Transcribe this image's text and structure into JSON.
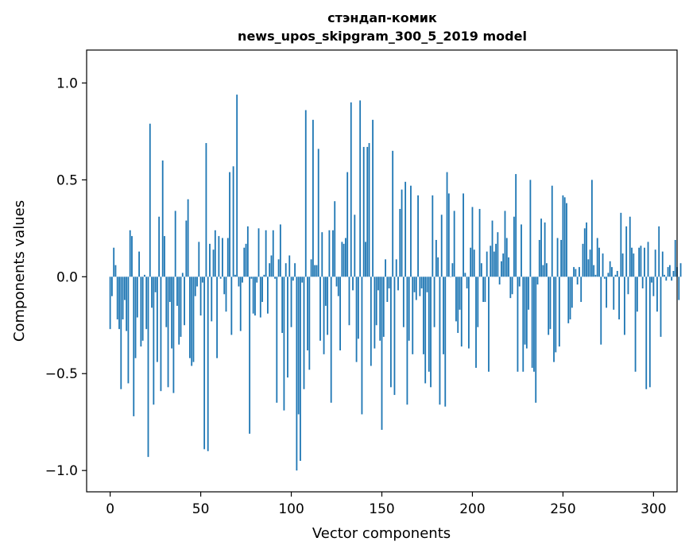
{
  "chart_data": {
    "type": "bar",
    "title": "стэндап-комик",
    "subtitle": "news_upos_skipgram_300_5_2019 model",
    "xlabel": "Vector components",
    "ylabel": "Components values",
    "xlim": [
      -13,
      313
    ],
    "ylim": [
      -1.11,
      1.17
    ],
    "xticks": [
      0,
      50,
      100,
      150,
      200,
      250,
      300
    ],
    "xtick_labels": [
      "0",
      "50",
      "100",
      "150",
      "200",
      "250",
      "300"
    ],
    "yticks": [
      -1.0,
      -0.5,
      0.0,
      0.5,
      1.0
    ],
    "ytick_labels": [
      "−1.0",
      "−0.5",
      "0.0",
      "0.5",
      "1.0"
    ],
    "grid": false,
    "bar_color": "#1f77b4",
    "values": [
      -0.27,
      -0.1,
      0.15,
      0.06,
      -0.22,
      -0.27,
      -0.58,
      -0.22,
      -0.12,
      -0.28,
      -0.55,
      0.24,
      0.21,
      -0.72,
      -0.42,
      -0.21,
      0.13,
      -0.36,
      -0.33,
      0.01,
      -0.27,
      -0.93,
      0.79,
      -0.16,
      -0.66,
      -0.08,
      -0.44,
      0.31,
      -0.59,
      0.6,
      0.21,
      -0.26,
      -0.57,
      -0.13,
      -0.37,
      -0.6,
      0.34,
      -0.15,
      -0.35,
      -0.31,
      0.02,
      -0.25,
      0.29,
      0.4,
      -0.42,
      -0.46,
      -0.44,
      -0.1,
      -0.05,
      0.18,
      -0.2,
      -0.03,
      -0.89,
      0.69,
      -0.9,
      0.17,
      -0.23,
      0.14,
      0.24,
      -0.42,
      0.21,
      -0.01,
      0.2,
      -0.09,
      -0.18,
      0.2,
      0.54,
      -0.3,
      0.57,
      0.01,
      0.94,
      -0.05,
      -0.28,
      -0.03,
      0.15,
      0.17,
      0.26,
      -0.81,
      -0.01,
      -0.19,
      -0.2,
      -0.03,
      0.25,
      -0.21,
      -0.13,
      0.01,
      0.24,
      -0.19,
      0.07,
      0.11,
      0.24,
      -0.01,
      -0.65,
      0.09,
      0.27,
      -0.29,
      -0.69,
      0.07,
      -0.52,
      0.11,
      -0.26,
      -0.02,
      0.07,
      -1.0,
      -0.71,
      -0.95,
      -0.03,
      -0.58,
      0.86,
      -0.38,
      -0.48,
      0.09,
      0.81,
      0.06,
      0.06,
      0.66,
      -0.33,
      0.23,
      -0.4,
      -0.15,
      -0.3,
      0.24,
      -0.65,
      0.24,
      0.39,
      -0.05,
      -0.1,
      -0.38,
      0.18,
      0.17,
      0.2,
      0.54,
      -0.25,
      0.9,
      -0.07,
      0.32,
      -0.44,
      -0.32,
      0.91,
      -0.71,
      0.67,
      0.18,
      0.67,
      0.69,
      -0.46,
      0.81,
      -0.37,
      -0.25,
      -0.07,
      -0.33,
      -0.79,
      -0.31,
      0.09,
      -0.13,
      -0.06,
      -0.57,
      0.65,
      -0.61,
      0.09,
      -0.07,
      0.35,
      0.45,
      -0.26,
      0.49,
      -0.66,
      -0.33,
      0.47,
      -0.4,
      -0.08,
      -0.12,
      0.42,
      -0.1,
      -0.06,
      -0.4,
      -0.55,
      -0.08,
      -0.49,
      -0.57,
      0.42,
      -0.26,
      0.19,
      0.1,
      -0.66,
      0.32,
      -0.4,
      -0.67,
      0.54,
      0.43,
      0.0,
      0.07,
      0.34,
      -0.23,
      -0.29,
      -0.17,
      -0.36,
      0.43,
      0.02,
      -0.06,
      -0.37,
      0.15,
      0.36,
      0.14,
      -0.47,
      -0.26,
      0.35,
      0.07,
      -0.13,
      -0.13,
      0.13,
      -0.49,
      0.16,
      0.29,
      0.13,
      0.17,
      0.23,
      -0.04,
      0.08,
      0.12,
      0.34,
      0.2,
      0.1,
      -0.11,
      -0.09,
      0.31,
      0.53,
      -0.49,
      -0.05,
      0.27,
      -0.49,
      -0.35,
      -0.37,
      -0.17,
      0.5,
      -0.47,
      -0.49,
      -0.65,
      -0.04,
      0.19,
      0.3,
      0.06,
      0.28,
      0.07,
      -0.3,
      -0.27,
      0.47,
      -0.44,
      -0.39,
      0.2,
      -0.36,
      0.19,
      0.42,
      0.41,
      0.38,
      -0.24,
      -0.22,
      -0.16,
      0.05,
      0.04,
      -0.04,
      0.05,
      -0.13,
      0.17,
      0.25,
      0.28,
      0.09,
      0.14,
      0.5,
      0.06,
      0.01,
      0.2,
      0.15,
      -0.35,
      0.12,
      -0.01,
      -0.16,
      0.02,
      0.08,
      0.05,
      -0.17,
      0.01,
      0.03,
      -0.22,
      0.33,
      0.12,
      -0.3,
      0.26,
      -0.09,
      0.31,
      0.15,
      0.12,
      -0.49,
      -0.18,
      0.15,
      0.16,
      -0.06,
      0.15,
      -0.58,
      0.18,
      -0.57,
      -0.03,
      -0.1,
      0.14,
      -0.18,
      0.26,
      -0.31,
      0.13,
      0.01,
      -0.02,
      0.05,
      0.06,
      -0.02,
      0.03,
      0.19,
      0.05,
      -0.12,
      0.07
    ]
  }
}
